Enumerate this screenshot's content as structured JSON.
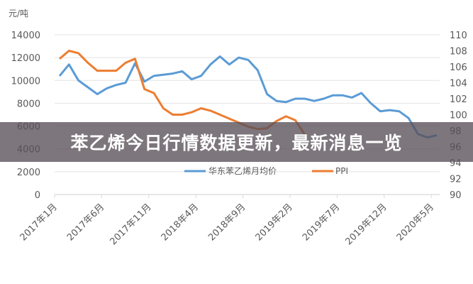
{
  "banner": {
    "title": "苯乙烯今日行情数据更新，最新消息一览"
  },
  "chart_data": {
    "type": "line",
    "title": "",
    "left_axis": {
      "unit_label": "元/吨",
      "range": [
        0,
        14000
      ],
      "ticks": [
        0,
        2000,
        4000,
        6000,
        8000,
        10000,
        12000,
        14000
      ]
    },
    "right_axis": {
      "range": [
        90,
        110
      ],
      "ticks": [
        90,
        92,
        94,
        96,
        98,
        100,
        102,
        104,
        106,
        108,
        110
      ]
    },
    "x_tick_labels": [
      "2017年1月",
      "2017年6月",
      "2017年11月",
      "2018年4月",
      "2018年9月",
      "2019年2月",
      "2019年7月",
      "2019年12月",
      "2020年5月"
    ],
    "x_start": "2017年1月",
    "x_step": "monthly",
    "grid": true,
    "legend_position": "bottom-center",
    "colors": {
      "price": "#5B9BD5",
      "ppi": "#ED7D31"
    },
    "series": [
      {
        "name": "华东苯乙烯月均价",
        "axis": "left",
        "color": "#5B9BD5",
        "values": [
          10400,
          11400,
          10000,
          9400,
          8800,
          9300,
          9600,
          9800,
          11500,
          9900,
          10400,
          10500,
          10600,
          10800,
          10100,
          10400,
          11400,
          12100,
          11400,
          12000,
          11800,
          10900,
          8800,
          8200,
          8100,
          8400,
          8400,
          8200,
          8400,
          8700,
          8700,
          8500,
          8900,
          8000,
          7300,
          7400,
          7300,
          6700,
          5300,
          5000,
          5200
        ]
      },
      {
        "name": "PPI",
        "axis": "right",
        "color": "#ED7D31",
        "values": [
          107.0,
          108.0,
          107.7,
          106.5,
          105.5,
          105.5,
          105.5,
          106.5,
          107.0,
          103.2,
          102.7,
          100.8,
          100.0,
          100.0,
          100.3,
          100.8,
          100.5,
          100.0,
          99.5,
          99.0,
          98.5,
          98.2,
          98.3,
          99.2,
          99.8,
          99.3,
          97.5
        ]
      }
    ]
  }
}
